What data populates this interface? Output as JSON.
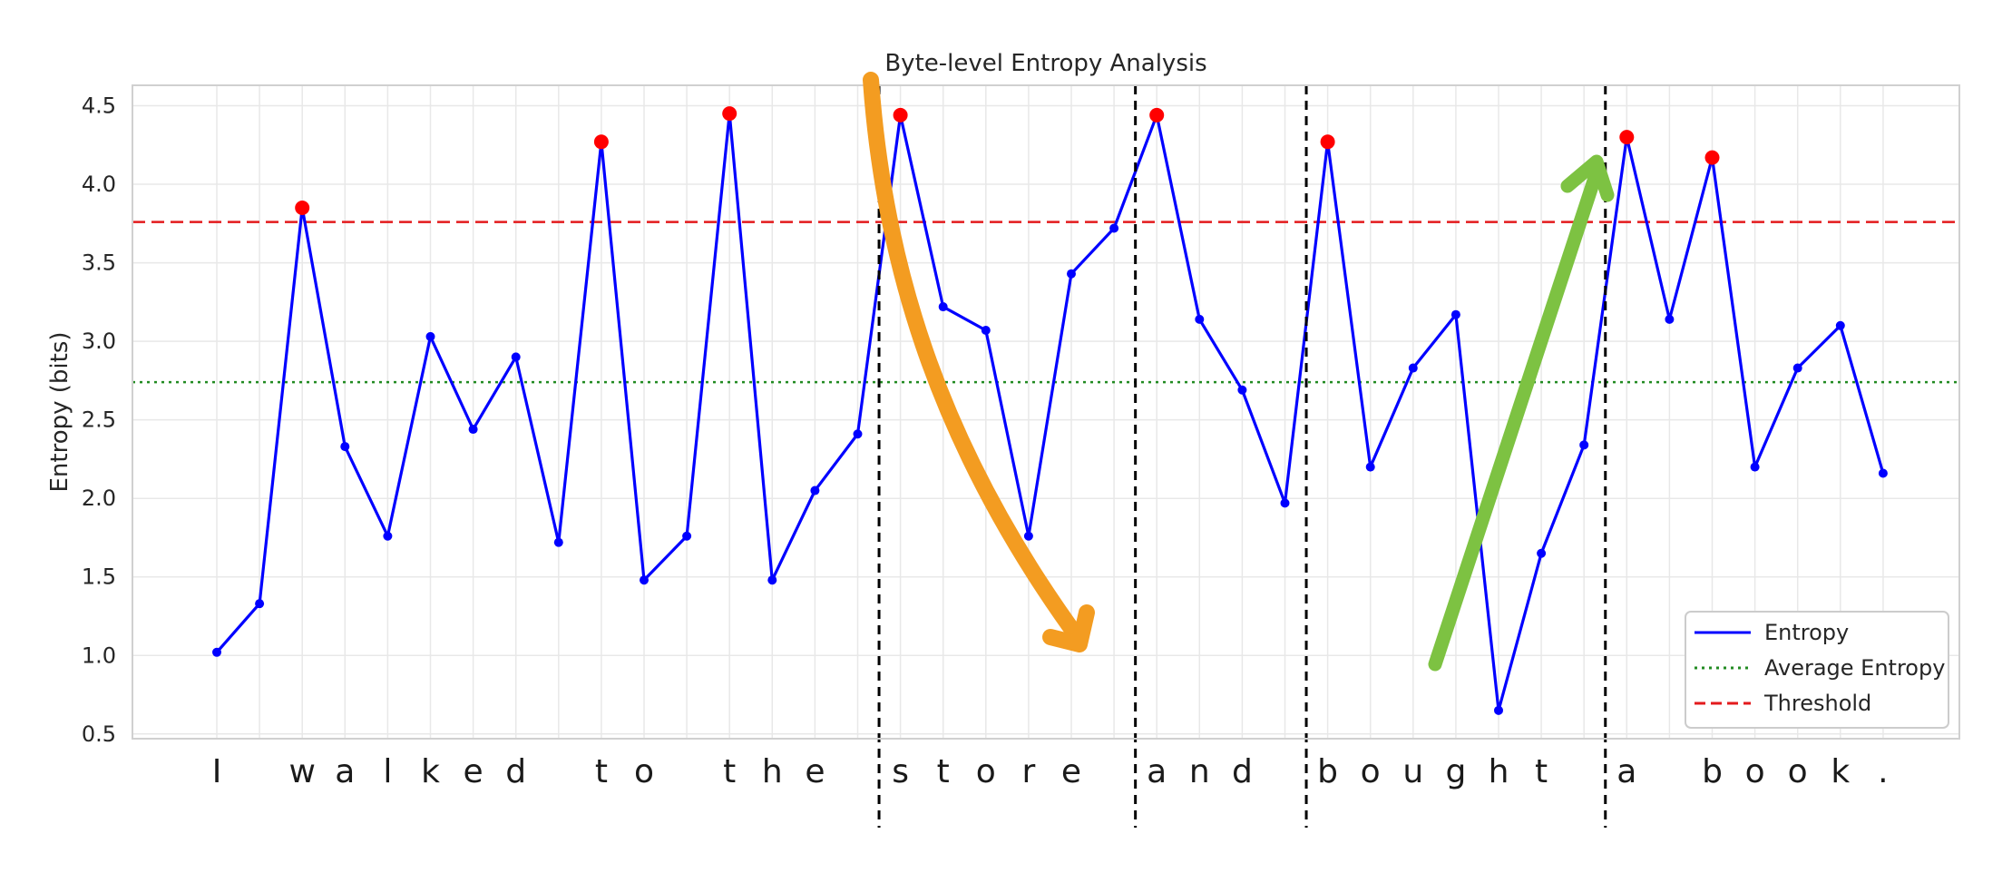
{
  "chart_data": {
    "type": "line",
    "title": "Byte-level Entropy Analysis",
    "xlabel": "",
    "ylabel": "Entropy (bits)",
    "ylim": [
      0.47,
      4.63
    ],
    "yticks": [
      "0.5",
      "1.0",
      "1.5",
      "2.0",
      "2.5",
      "3.0",
      "3.5",
      "4.0",
      "4.5"
    ],
    "grid": true,
    "legend_position": "lower-right",
    "characters": [
      "I",
      " ",
      "w",
      "a",
      "l",
      "k",
      "e",
      "d",
      " ",
      "t",
      "o",
      " ",
      "t",
      "h",
      "e",
      " ",
      "s",
      "t",
      "o",
      "r",
      "e",
      " ",
      "a",
      "n",
      "d",
      " ",
      "b",
      "o",
      "u",
      "g",
      "h",
      "t",
      " ",
      "a",
      " ",
      "b",
      "o",
      "o",
      "k",
      "."
    ],
    "series": [
      {
        "name": "Entropy",
        "color": "#0000ff",
        "values": [
          1.02,
          1.33,
          3.85,
          2.33,
          1.76,
          3.03,
          2.44,
          2.9,
          1.72,
          4.27,
          1.48,
          1.76,
          4.45,
          1.48,
          2.05,
          2.41,
          4.44,
          3.22,
          3.07,
          1.76,
          3.43,
          3.72,
          4.44,
          3.14,
          2.69,
          1.97,
          4.27,
          2.2,
          2.83,
          3.17,
          0.65,
          1.65,
          2.34,
          4.3,
          3.14,
          4.17,
          2.2,
          2.83,
          3.1,
          2.16
        ]
      }
    ],
    "peaks_above_threshold": [
      2,
      9,
      12,
      16,
      22,
      26,
      33,
      35
    ],
    "average_entropy": {
      "name": "Average Entropy",
      "value": 2.74,
      "color": "#228b22"
    },
    "threshold": {
      "name": "Threshold",
      "value": 3.76,
      "color": "#e31a1c"
    },
    "word_boundaries_after_index": [
      15,
      21,
      25,
      32
    ],
    "annotations": [
      {
        "type": "arrow",
        "color": "#f39c21",
        "description": "downward orange arrow"
      },
      {
        "type": "arrow",
        "color": "#7dc242",
        "description": "upward green arrow"
      }
    ],
    "peak_marker_color": "#ff0000"
  }
}
